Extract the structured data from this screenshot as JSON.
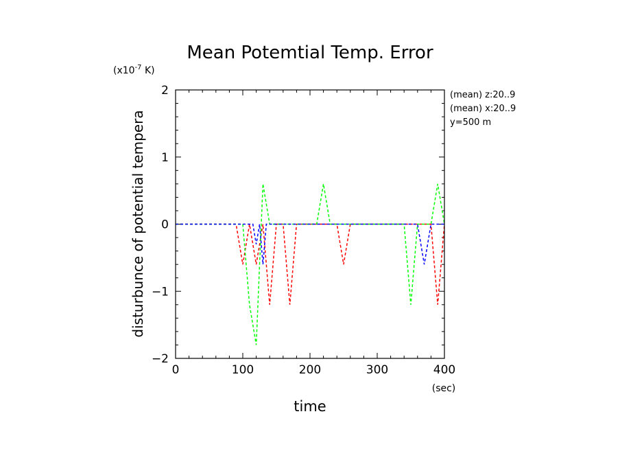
{
  "chart_data": {
    "type": "line",
    "title": "Mean Potemtial Temp. Error",
    "scale_label": "(x10",
    "scale_exp": "-7",
    "scale_unit": " K)",
    "ylabel": "disturbunce of potential tempera",
    "xlabel": "time",
    "x_unit": "(sec)",
    "xlim": [
      0,
      400
    ],
    "ylim": [
      -2,
      2
    ],
    "xticks": [
      0,
      100,
      200,
      300,
      400
    ],
    "xtick_labels": [
      "0",
      "100",
      "200",
      "300",
      "400"
    ],
    "yticks": [
      -2,
      -1,
      0,
      1,
      2
    ],
    "ytick_labels": [
      "−2",
      "−1",
      "0",
      "1",
      "2"
    ],
    "annotations": [
      "(mean) z:20..9",
      "(mean) x:20..9",
      "y=500 m"
    ],
    "grid": false,
    "series": [
      {
        "color": "#ff0000",
        "x": [
          0,
          90,
          100,
          110,
          120,
          130,
          140,
          150,
          160,
          170,
          180,
          240,
          250,
          260,
          380,
          390,
          400
        ],
        "y": [
          0,
          0,
          -0.6,
          0,
          -0.6,
          0,
          -1.2,
          0,
          0,
          -1.2,
          0,
          0,
          -0.6,
          0,
          0,
          -1.2,
          0
        ]
      },
      {
        "color": "#00ff00",
        "x": [
          0,
          90,
          100,
          110,
          120,
          130,
          140,
          210,
          220,
          230,
          340,
          350,
          360,
          380,
          390,
          400
        ],
        "y": [
          0,
          0,
          0,
          -1.2,
          -1.8,
          0.6,
          0,
          0,
          0.6,
          0,
          0,
          -1.2,
          0,
          0,
          0.6,
          0
        ]
      },
      {
        "color": "#0000ff",
        "x": [
          0,
          115,
          120,
          125,
          130,
          135,
          140,
          360,
          370,
          380,
          400
        ],
        "y": [
          0,
          0,
          -0.3,
          0,
          -0.6,
          0,
          0,
          0,
          -0.6,
          0,
          0
        ]
      }
    ]
  }
}
